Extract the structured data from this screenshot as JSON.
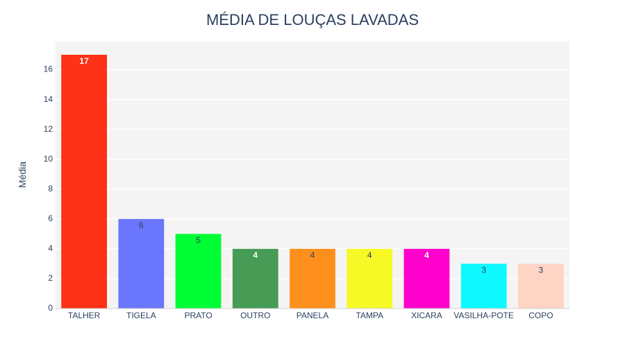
{
  "chart_data": {
    "type": "bar",
    "title": "MÉDIA DE LOUÇAS LAVADAS",
    "xlabel": "",
    "ylabel": "Média",
    "ylim": [
      0,
      17
    ],
    "yticks": [
      0,
      2,
      4,
      6,
      8,
      10,
      12,
      14,
      16
    ],
    "grid": true,
    "legend": "none",
    "categories": [
      "TALHER",
      "TIGELA",
      "PRATO",
      "OUTRO",
      "PANELA",
      "TAMPA",
      "XICARA",
      "VASILHA-POTE",
      "COPO"
    ],
    "values": [
      17,
      6,
      5,
      4,
      4,
      4,
      4,
      3,
      3
    ],
    "colors": [
      "#FD3216",
      "#6A76FC",
      "#00FE35",
      "#479B55",
      "#FE8F1D",
      "#F6F926",
      "#FF00CC",
      "#0DF9FF",
      "#FED4C4"
    ],
    "label_colors": [
      "#ffffff",
      "#2a3f5f",
      "#2a3f5f",
      "#ffffff",
      "#2a3f5f",
      "#2a3f5f",
      "#ffffff",
      "#2a3f5f",
      "#2a3f5f"
    ]
  }
}
